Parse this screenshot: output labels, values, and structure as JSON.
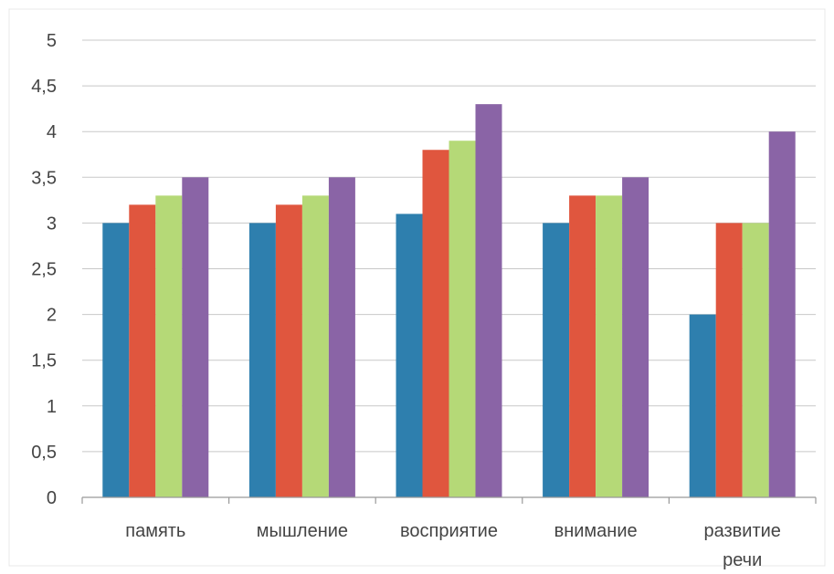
{
  "chart_data": {
    "type": "bar",
    "categories": [
      [
        "память"
      ],
      [
        "мышление"
      ],
      [
        "восприятие"
      ],
      [
        "внимание"
      ],
      [
        "развитие",
        "речи"
      ]
    ],
    "series": [
      {
        "color": "#2e7fae",
        "values": [
          3.0,
          3.0,
          3.1,
          3.0,
          2.0
        ]
      },
      {
        "color": "#e0563e",
        "values": [
          3.2,
          3.2,
          3.8,
          3.3,
          3.0
        ]
      },
      {
        "color": "#b5d977",
        "values": [
          3.3,
          3.3,
          3.9,
          3.3,
          3.0
        ]
      },
      {
        "color": "#8a64a6",
        "values": [
          3.5,
          3.5,
          4.3,
          3.5,
          4.0
        ]
      }
    ],
    "yticks": [
      "0",
      "0,5",
      "1",
      "1,5",
      "2",
      "2,5",
      "3",
      "3,5",
      "4",
      "4,5",
      "5"
    ],
    "ylim": [
      0,
      5
    ],
    "grid": true,
    "legend": "none"
  }
}
